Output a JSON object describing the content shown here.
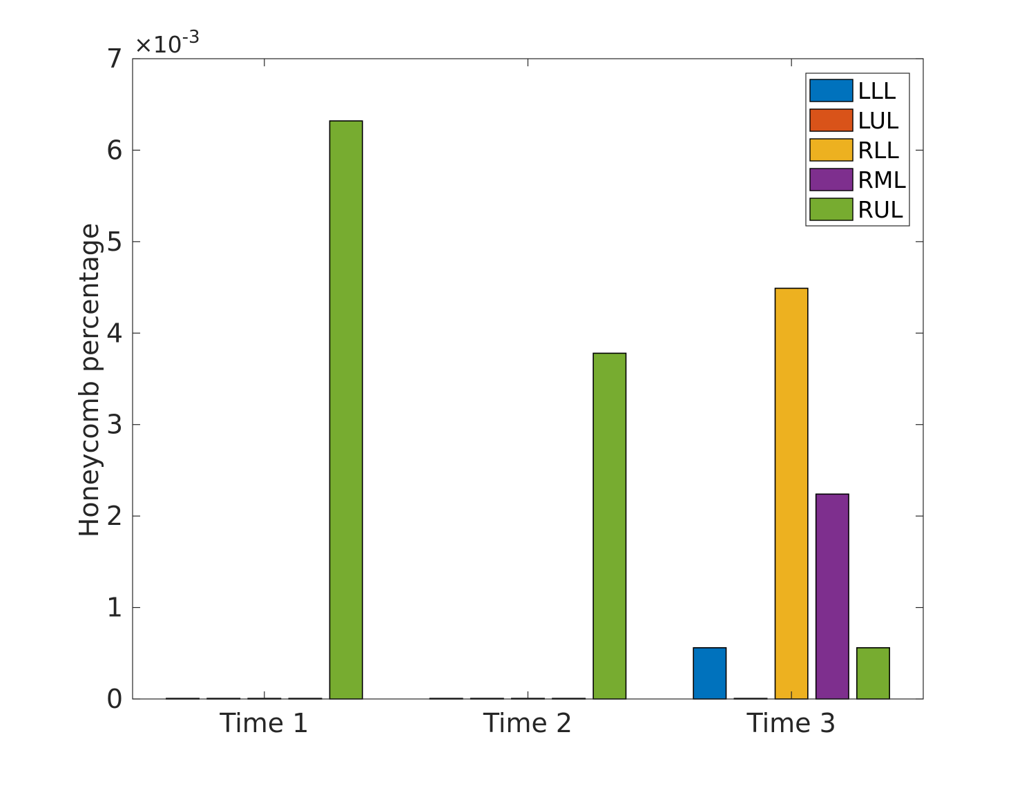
{
  "chart_data": {
    "type": "bar",
    "categories": [
      "Time 1",
      "Time 2",
      "Time 3"
    ],
    "series": [
      {
        "name": "LLL",
        "color": "#0072BD",
        "values": [
          0,
          0,
          0.00056
        ]
      },
      {
        "name": "LUL",
        "color": "#D95319",
        "values": [
          0,
          0,
          0
        ]
      },
      {
        "name": "RLL",
        "color": "#EDB120",
        "values": [
          0,
          0,
          0.00449
        ]
      },
      {
        "name": "RML",
        "color": "#7E2F8E",
        "values": [
          0,
          0,
          0.00224
        ]
      },
      {
        "name": "RUL",
        "color": "#77AC30",
        "values": [
          0.00632,
          0.00378,
          0.00056
        ]
      }
    ],
    "ylabel": "Honeycomb percentage",
    "xlabel": "",
    "ylim": [
      0,
      0.007
    ],
    "yticks": [
      0,
      1,
      2,
      3,
      4,
      5,
      6,
      7
    ],
    "exponent": {
      "base": "×10",
      "power": "-3"
    },
    "legend_position": "top-right",
    "grid": false
  }
}
